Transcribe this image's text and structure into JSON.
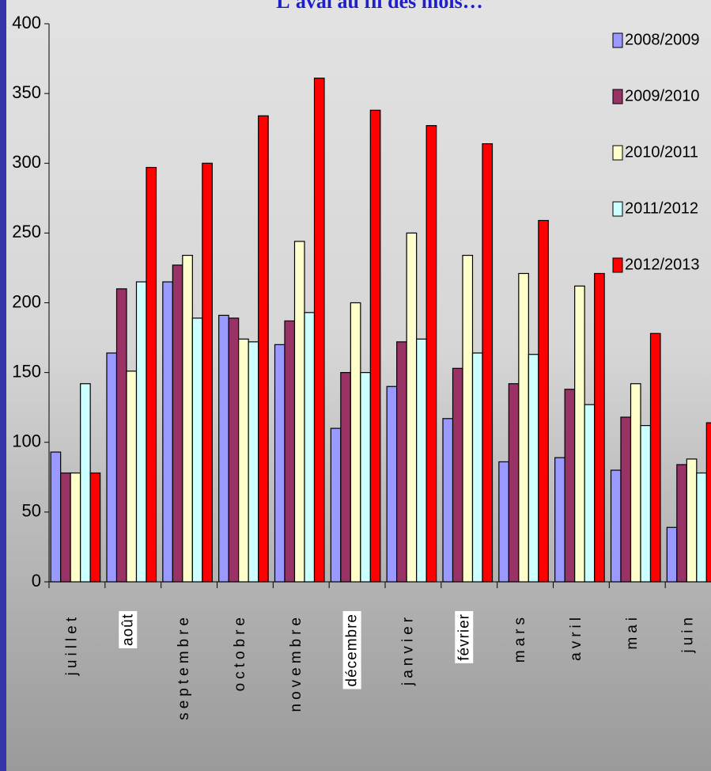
{
  "chart_data": {
    "type": "bar",
    "title": "L'aval au fil des mois…",
    "categories": [
      "juillet",
      "août",
      "septembre",
      "octobre",
      "novembre",
      "décembre",
      "janvier",
      "février",
      "mars",
      "avril",
      "mai",
      "juin"
    ],
    "series": [
      {
        "name": "2008/2009",
        "color": "#9999ff",
        "values": [
          93,
          164,
          215,
          191,
          170,
          110,
          140,
          117,
          86,
          89,
          80,
          39
        ]
      },
      {
        "name": "2009/2010",
        "color": "#993366",
        "values": [
          78,
          210,
          227,
          189,
          187,
          150,
          172,
          153,
          142,
          138,
          118,
          84
        ]
      },
      {
        "name": "2010/2011",
        "color": "#ffffcc",
        "values": [
          78,
          151,
          234,
          174,
          244,
          200,
          250,
          234,
          221,
          212,
          142,
          88
        ]
      },
      {
        "name": "2011/2012",
        "color": "#ccffff",
        "values": [
          142,
          215,
          189,
          172,
          193,
          150,
          174,
          164,
          163,
          127,
          112,
          78
        ]
      },
      {
        "name": "2012/2013",
        "color": "#ff0000",
        "values": [
          78,
          297,
          300,
          334,
          361,
          338,
          327,
          314,
          259,
          221,
          178,
          114
        ]
      }
    ],
    "ylim": [
      0,
      400
    ],
    "yticks": [
      0,
      50,
      100,
      150,
      200,
      250,
      300,
      350,
      400
    ],
    "legend": "right"
  }
}
